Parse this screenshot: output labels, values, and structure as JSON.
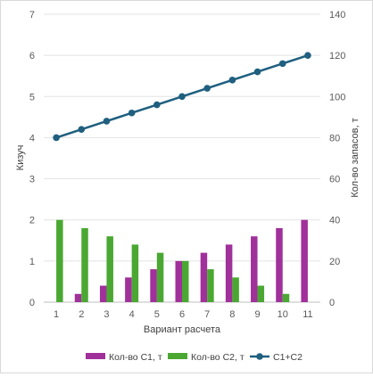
{
  "chart_data": {
    "type": "bar",
    "categories": [
      "1",
      "2",
      "3",
      "4",
      "5",
      "6",
      "7",
      "8",
      "9",
      "10",
      "11"
    ],
    "series": [
      {
        "name": "Кол-во C1, т",
        "type": "bar",
        "axis": "right",
        "color": "#a0309a",
        "values": [
          0,
          4,
          8,
          12,
          16,
          20,
          24,
          28,
          32,
          36,
          40
        ]
      },
      {
        "name": "Кол-во C2, т",
        "type": "bar",
        "axis": "right",
        "color": "#4aa832",
        "values": [
          40,
          36,
          32,
          28,
          24,
          20,
          16,
          12,
          8,
          4,
          0
        ]
      },
      {
        "name": "C1+C2",
        "type": "line",
        "axis": "left",
        "color": "#1f5f7f",
        "values": [
          4.0,
          4.2,
          4.4,
          4.6,
          4.8,
          5.0,
          5.2,
          5.4,
          5.6,
          5.8,
          6.0
        ]
      }
    ],
    "xlabel": "Вариант расчета",
    "ylabel": "Кизуч",
    "y2label": "Кол-во запасов, т",
    "ylim": [
      0,
      7
    ],
    "yticks": [
      "0",
      "1",
      "2",
      "3",
      "4",
      "5",
      "6",
      "7"
    ],
    "y2lim": [
      0,
      140
    ],
    "y2ticks": [
      "0",
      "20",
      "40",
      "60",
      "80",
      "100",
      "120",
      "140"
    ],
    "grid": true,
    "legend": "bottom"
  }
}
